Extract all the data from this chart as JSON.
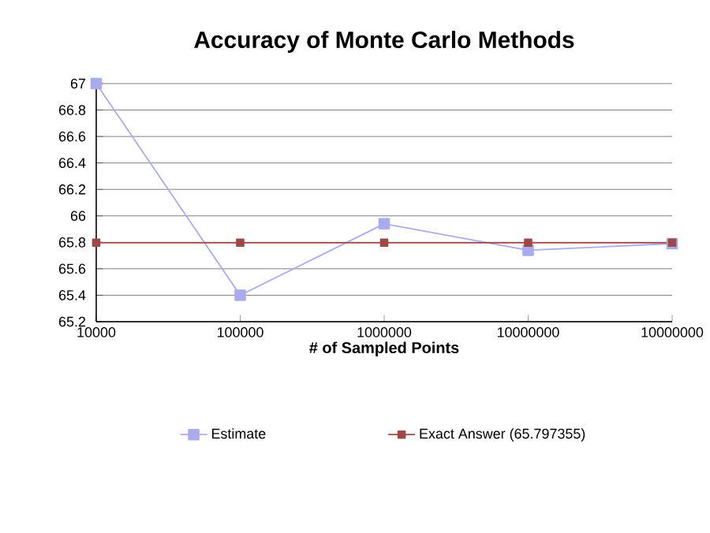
{
  "chart_data": {
    "type": "line",
    "title": "Accuracy of Monte Carlo Methods",
    "xlabel": "# of Sampled Points",
    "categories": [
      "10000",
      "100000",
      "1000000",
      "10000000",
      "10000000"
    ],
    "series": [
      {
        "name": "Estimate",
        "color": "#aaaaee",
        "values": [
          67,
          65.4,
          65.94,
          65.74,
          65.79
        ]
      },
      {
        "name": "Exact Answer (65.797355)",
        "color": "#a04848",
        "values": [
          65.797355,
          65.797355,
          65.797355,
          65.797355,
          65.797355
        ]
      }
    ],
    "ylim": [
      65.2,
      67
    ],
    "yticks": [
      65.2,
      65.4,
      65.6,
      65.8,
      66,
      66.2,
      66.4,
      66.6,
      66.8,
      67
    ],
    "grid": "y",
    "legend": "bottom",
    "marker": "square",
    "line_style": "solid"
  }
}
